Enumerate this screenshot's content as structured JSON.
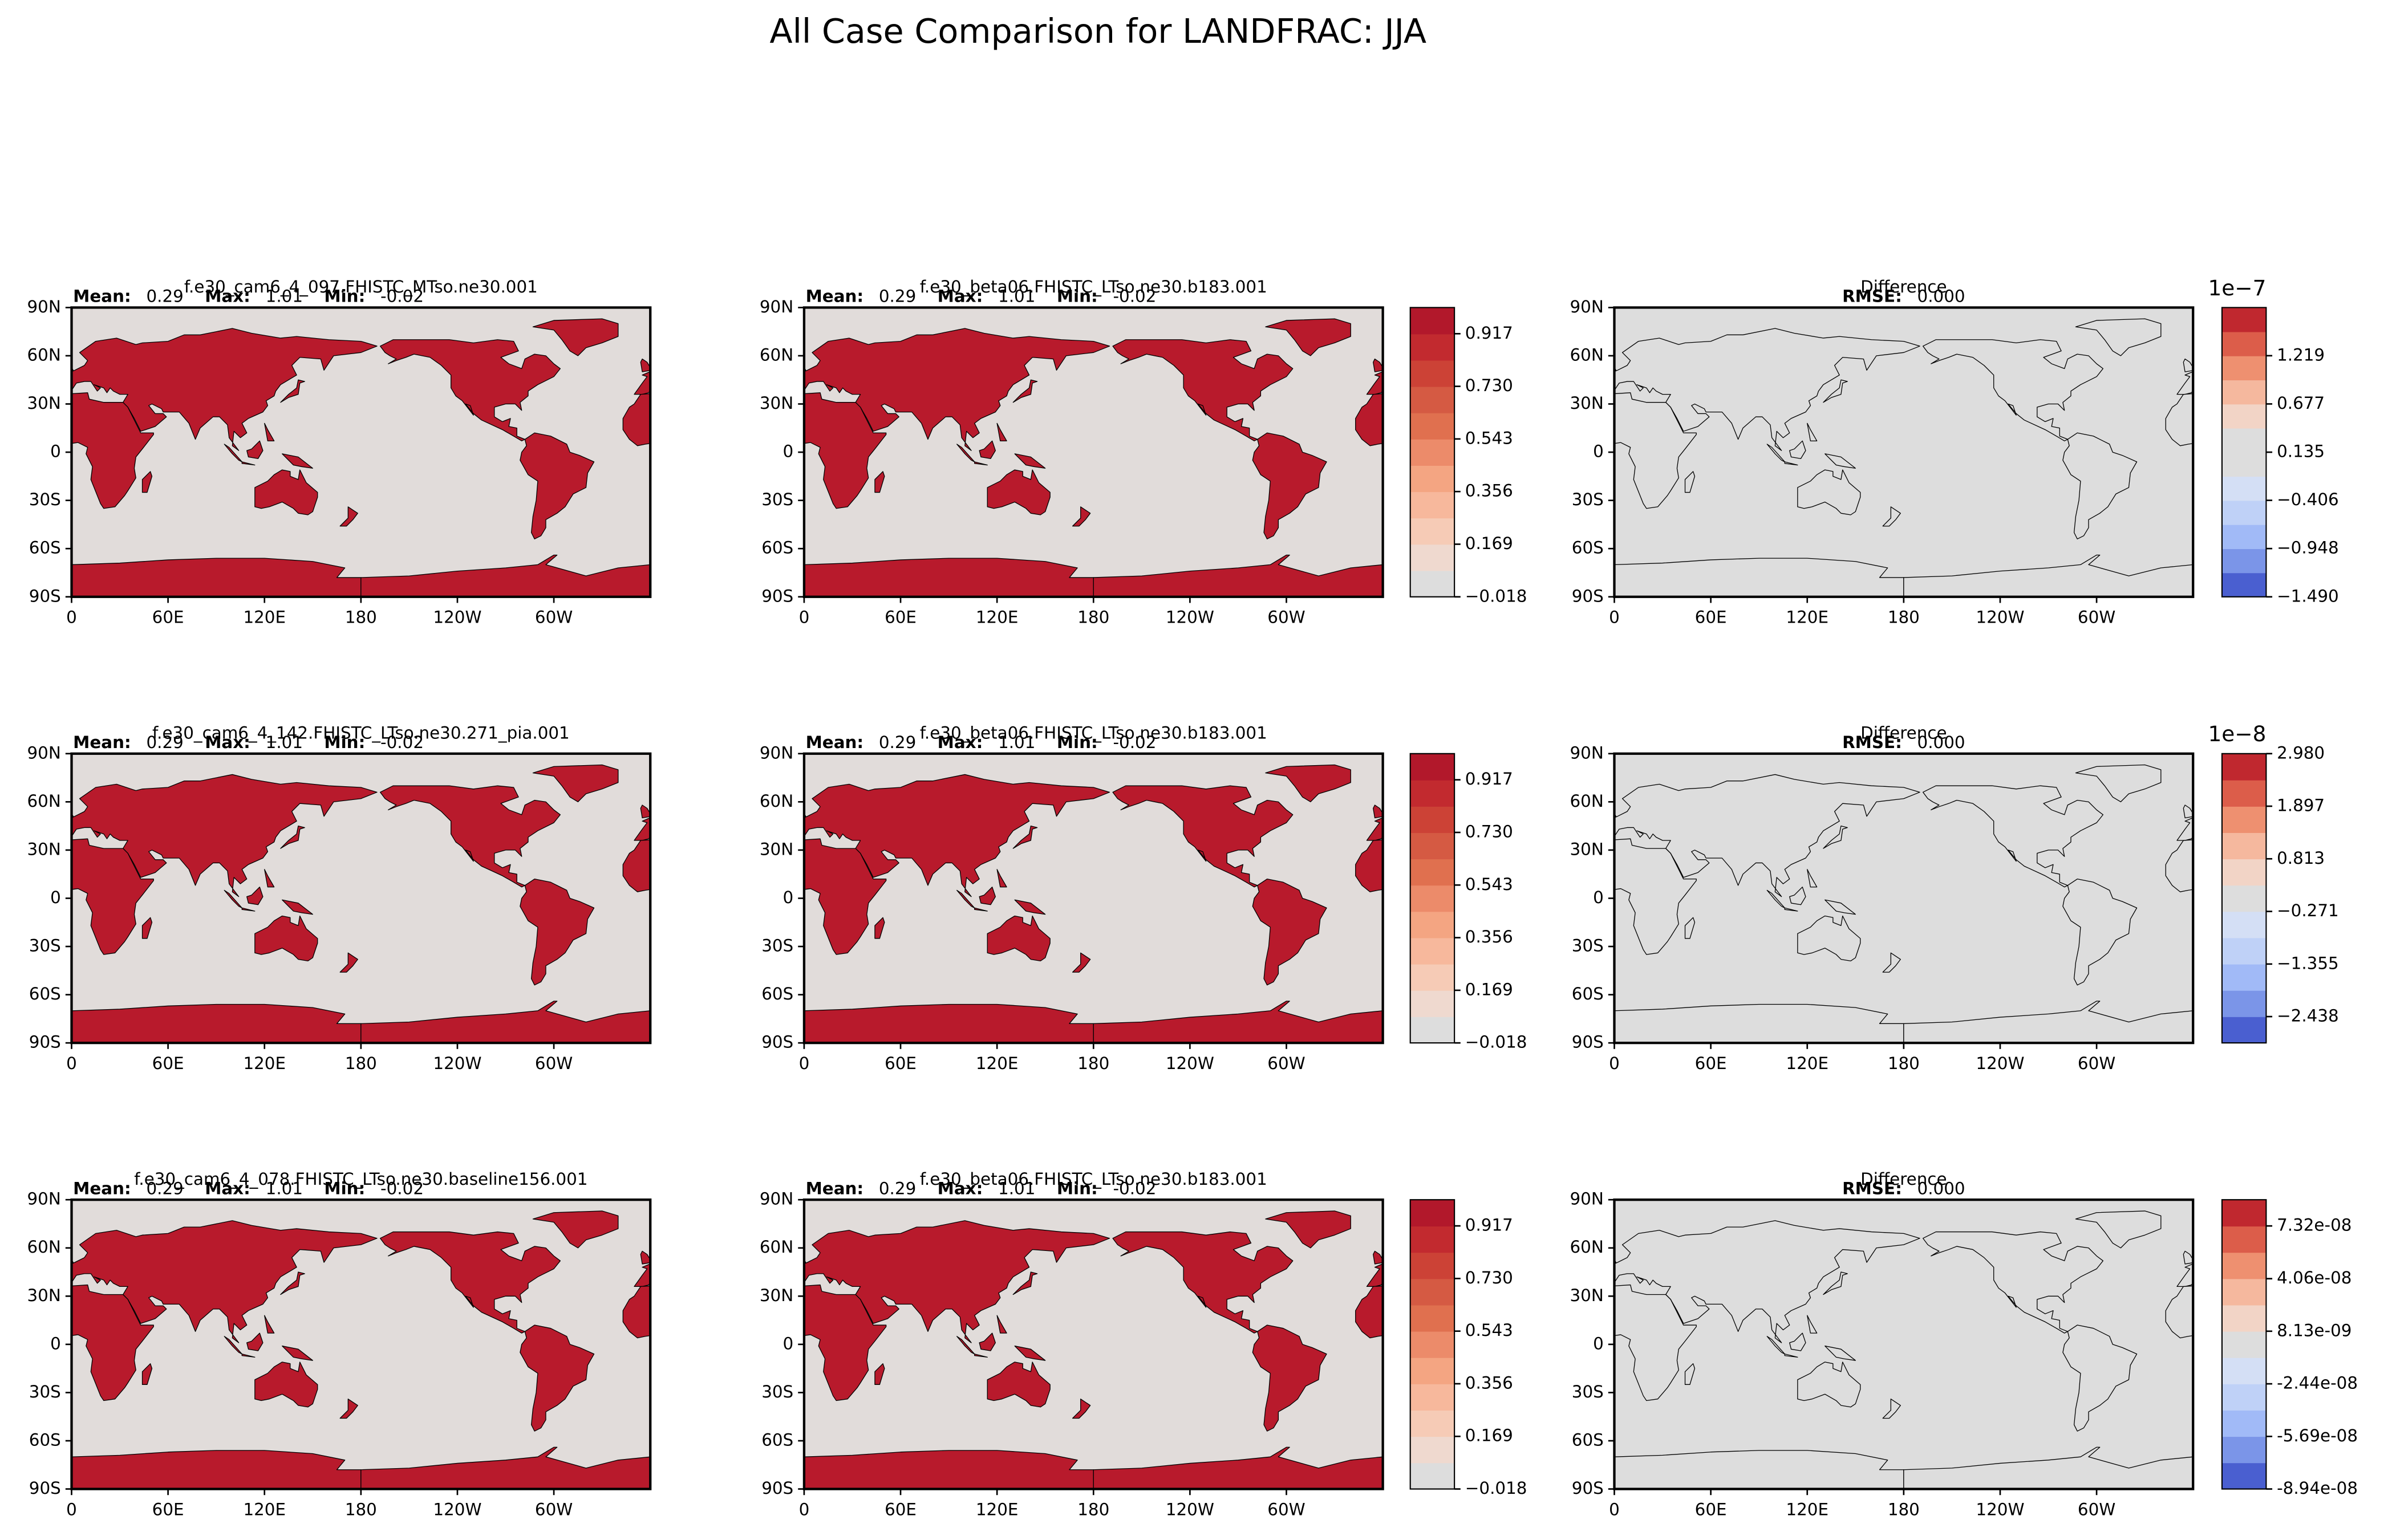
{
  "title": "All Case Comparison for LANDFRAC: JJA",
  "chart_data": [
    {
      "type": "map",
      "title": "f.e30_cam6_4_097.FHISTC_MTso.ne30.001",
      "stats": {
        "labels": [
          "Mean:",
          "Max:",
          "Min:"
        ],
        "values": [
          0.29,
          1.01,
          -0.02
        ]
      },
      "xlim": [
        0,
        360
      ],
      "ylim": [
        -90,
        90
      ],
      "xticks": [
        0,
        {
          "value": 60,
          "label": "60E"
        },
        {
          "value": 120,
          "label": "120E"
        },
        180,
        {
          "value": 240,
          "label": "120W"
        },
        {
          "value": 300,
          "label": "60W"
        }
      ],
      "yticks": [
        {
          "value": -90,
          "label": "90S"
        },
        {
          "value": -60,
          "label": "60S"
        },
        {
          "value": -30,
          "label": "30S"
        },
        0,
        {
          "value": 30,
          "label": "30N"
        },
        {
          "value": 60,
          "label": "60N"
        },
        {
          "value": 90,
          "label": "90N"
        }
      ],
      "land_color": "#b81a2c",
      "ocean_color": "#e1dcda"
    },
    {
      "type": "map",
      "title": "f.e30_beta06.FHISTC_LTso.ne30.b183.001",
      "stats": {
        "labels": [
          "Mean:",
          "Max:",
          "Min:"
        ],
        "values": [
          0.29,
          1.01,
          -0.02
        ]
      },
      "xlim": [
        0,
        360
      ],
      "ylim": [
        -90,
        90
      ],
      "xticks": [
        0,
        {
          "value": 60,
          "label": "60E"
        },
        {
          "value": 120,
          "label": "120E"
        },
        180,
        {
          "value": 240,
          "label": "120W"
        },
        {
          "value": 300,
          "label": "60W"
        }
      ],
      "yticks": [
        {
          "value": -90,
          "label": "90S"
        },
        {
          "value": -60,
          "label": "60S"
        },
        {
          "value": -30,
          "label": "30S"
        },
        0,
        {
          "value": 30,
          "label": "30N"
        },
        {
          "value": 60,
          "label": "60N"
        },
        {
          "value": 90,
          "label": "90N"
        }
      ],
      "land_color": "#b81a2c",
      "ocean_color": "#e1dcda",
      "colorbar": {
        "lim": [
          -0.018,
          1.01
        ],
        "colors": [
          "#dddddd",
          "#efd9cf",
          "#f6cbb6",
          "#f7b89c",
          "#f4a582",
          "#ec8b6a",
          "#e0704f",
          "#d55a43",
          "#cc4236",
          "#c22a2f",
          "#b2182b"
        ],
        "ticks": [
          {
            "value": -0.018,
            "label": "−0.018"
          },
          0.169,
          0.356,
          0.543,
          {
            "value": 0.73,
            "label": "0.730"
          },
          0.917
        ]
      }
    },
    {
      "type": "map",
      "title": "Difference",
      "stats": {
        "labels": [
          "RMSE:"
        ],
        "values": [
          0
        ],
        "value_labels": [
          "0.000"
        ]
      },
      "xlim": [
        0,
        360
      ],
      "ylim": [
        -90,
        90
      ],
      "xticks": [
        0,
        {
          "value": 60,
          "label": "60E"
        },
        {
          "value": 120,
          "label": "120E"
        },
        180,
        {
          "value": 240,
          "label": "120W"
        },
        {
          "value": 300,
          "label": "60W"
        }
      ],
      "yticks": [
        {
          "value": -90,
          "label": "90S"
        },
        {
          "value": -60,
          "label": "60S"
        },
        {
          "value": -30,
          "label": "30S"
        },
        0,
        {
          "value": 30,
          "label": "30N"
        },
        {
          "value": 60,
          "label": "60N"
        },
        {
          "value": 90,
          "label": "90N"
        }
      ],
      "land_color": "none",
      "ocean_color": "#dddddd",
      "colorbar": {
        "lim": [
          -1.49,
          1.76
        ],
        "offset": "1e−7",
        "colors": [
          "#4a5fd0",
          "#7b95e8",
          "#a1baf7",
          "#bfd1f7",
          "#d4dff5",
          "#dddddd",
          "#dddddd",
          "#f2d4c6",
          "#f5b89e",
          "#ee9070",
          "#dc5d4a",
          "#c0282f"
        ],
        "ticks": [
          {
            "value": -1.49,
            "label": "−1.490"
          },
          {
            "value": -0.948,
            "label": "−0.948"
          },
          {
            "value": -0.406,
            "label": "−0.406"
          },
          0.135,
          0.677,
          1.219
        ]
      }
    },
    {
      "type": "map",
      "title": "f.e30_cam6_4_142.FHISTC_LTso.ne30.271_pia.001",
      "stats": {
        "labels": [
          "Mean:",
          "Max:",
          "Min:"
        ],
        "values": [
          0.29,
          1.01,
          -0.02
        ]
      },
      "xlim": [
        0,
        360
      ],
      "ylim": [
        -90,
        90
      ],
      "xticks": [
        0,
        {
          "value": 60,
          "label": "60E"
        },
        {
          "value": 120,
          "label": "120E"
        },
        180,
        {
          "value": 240,
          "label": "120W"
        },
        {
          "value": 300,
          "label": "60W"
        }
      ],
      "yticks": [
        {
          "value": -90,
          "label": "90S"
        },
        {
          "value": -60,
          "label": "60S"
        },
        {
          "value": -30,
          "label": "30S"
        },
        0,
        {
          "value": 30,
          "label": "30N"
        },
        {
          "value": 60,
          "label": "60N"
        },
        {
          "value": 90,
          "label": "90N"
        }
      ],
      "land_color": "#b81a2c",
      "ocean_color": "#e1dcda"
    },
    {
      "type": "map",
      "title": "f.e30_beta06.FHISTC_LTso.ne30.b183.001",
      "stats": {
        "labels": [
          "Mean:",
          "Max:",
          "Min:"
        ],
        "values": [
          0.29,
          1.01,
          -0.02
        ]
      },
      "xlim": [
        0,
        360
      ],
      "ylim": [
        -90,
        90
      ],
      "xticks": [
        0,
        {
          "value": 60,
          "label": "60E"
        },
        {
          "value": 120,
          "label": "120E"
        },
        180,
        {
          "value": 240,
          "label": "120W"
        },
        {
          "value": 300,
          "label": "60W"
        }
      ],
      "yticks": [
        {
          "value": -90,
          "label": "90S"
        },
        {
          "value": -60,
          "label": "60S"
        },
        {
          "value": -30,
          "label": "30S"
        },
        0,
        {
          "value": 30,
          "label": "30N"
        },
        {
          "value": 60,
          "label": "60N"
        },
        {
          "value": 90,
          "label": "90N"
        }
      ],
      "land_color": "#b81a2c",
      "ocean_color": "#e1dcda",
      "colorbar": {
        "lim": [
          -0.018,
          1.01
        ],
        "colors": [
          "#dddddd",
          "#efd9cf",
          "#f6cbb6",
          "#f7b89c",
          "#f4a582",
          "#ec8b6a",
          "#e0704f",
          "#d55a43",
          "#cc4236",
          "#c22a2f",
          "#b2182b"
        ],
        "ticks": [
          {
            "value": -0.018,
            "label": "−0.018"
          },
          0.169,
          0.356,
          0.543,
          {
            "value": 0.73,
            "label": "0.730"
          },
          0.917
        ]
      }
    },
    {
      "type": "map",
      "title": "Difference",
      "stats": {
        "labels": [
          "RMSE:"
        ],
        "values": [
          0
        ],
        "value_labels": [
          "0.000"
        ]
      },
      "xlim": [
        0,
        360
      ],
      "ylim": [
        -90,
        90
      ],
      "xticks": [
        0,
        {
          "value": 60,
          "label": "60E"
        },
        {
          "value": 120,
          "label": "120E"
        },
        180,
        {
          "value": 240,
          "label": "120W"
        },
        {
          "value": 300,
          "label": "60W"
        }
      ],
      "yticks": [
        {
          "value": -90,
          "label": "90S"
        },
        {
          "value": -60,
          "label": "60S"
        },
        {
          "value": -30,
          "label": "30S"
        },
        0,
        {
          "value": 30,
          "label": "30N"
        },
        {
          "value": 60,
          "label": "60N"
        },
        {
          "value": 90,
          "label": "90N"
        }
      ],
      "land_color": "none",
      "ocean_color": "#dddddd",
      "colorbar": {
        "lim": [
          -2.98,
          2.98
        ],
        "offset": "1e−8",
        "colors": [
          "#4a5fd0",
          "#7b95e8",
          "#a1baf7",
          "#bfd1f7",
          "#d4dff5",
          "#dddddd",
          "#f2d4c6",
          "#f5b89e",
          "#ee9070",
          "#dc5d4a",
          "#c0282f"
        ],
        "ticks": [
          {
            "value": -2.438,
            "label": "−2.438"
          },
          {
            "value": -1.355,
            "label": "−1.355"
          },
          {
            "value": -0.271,
            "label": "−0.271"
          },
          0.813,
          1.897,
          {
            "value": 2.98,
            "label": "2.980"
          }
        ]
      }
    },
    {
      "type": "map",
      "title": "f.e30_cam6_4_078.FHISTC_LTso.ne30.baseline156.001",
      "stats": {
        "labels": [
          "Mean:",
          "Max:",
          "Min:"
        ],
        "values": [
          0.29,
          1.01,
          -0.02
        ]
      },
      "xlim": [
        0,
        360
      ],
      "ylim": [
        -90,
        90
      ],
      "xticks": [
        0,
        {
          "value": 60,
          "label": "60E"
        },
        {
          "value": 120,
          "label": "120E"
        },
        180,
        {
          "value": 240,
          "label": "120W"
        },
        {
          "value": 300,
          "label": "60W"
        }
      ],
      "yticks": [
        {
          "value": -90,
          "label": "90S"
        },
        {
          "value": -60,
          "label": "60S"
        },
        {
          "value": -30,
          "label": "30S"
        },
        0,
        {
          "value": 30,
          "label": "30N"
        },
        {
          "value": 60,
          "label": "60N"
        },
        {
          "value": 90,
          "label": "90N"
        }
      ],
      "land_color": "#b81a2c",
      "ocean_color": "#e1dcda"
    },
    {
      "type": "map",
      "title": "f.e30_beta06.FHISTC_LTso.ne30.b183.001",
      "stats": {
        "labels": [
          "Mean:",
          "Max:",
          "Min:"
        ],
        "values": [
          0.29,
          1.01,
          -0.02
        ]
      },
      "xlim": [
        0,
        360
      ],
      "ylim": [
        -90,
        90
      ],
      "xticks": [
        0,
        {
          "value": 60,
          "label": "60E"
        },
        {
          "value": 120,
          "label": "120E"
        },
        180,
        {
          "value": 240,
          "label": "120W"
        },
        {
          "value": 300,
          "label": "60W"
        }
      ],
      "yticks": [
        {
          "value": -90,
          "label": "90S"
        },
        {
          "value": -60,
          "label": "60S"
        },
        {
          "value": -30,
          "label": "30S"
        },
        0,
        {
          "value": 30,
          "label": "30N"
        },
        {
          "value": 60,
          "label": "60N"
        },
        {
          "value": 90,
          "label": "90N"
        }
      ],
      "land_color": "#b81a2c",
      "ocean_color": "#e1dcda",
      "colorbar": {
        "lim": [
          -0.018,
          1.01
        ],
        "colors": [
          "#dddddd",
          "#efd9cf",
          "#f6cbb6",
          "#f7b89c",
          "#f4a582",
          "#ec8b6a",
          "#e0704f",
          "#d55a43",
          "#cc4236",
          "#c22a2f",
          "#b2182b"
        ],
        "ticks": [
          {
            "value": -0.018,
            "label": "−0.018"
          },
          0.169,
          0.356,
          0.543,
          {
            "value": 0.73,
            "label": "0.730"
          },
          0.917
        ]
      }
    },
    {
      "type": "map",
      "title": "Difference",
      "stats": {
        "labels": [
          "RMSE:"
        ],
        "values": [
          0
        ],
        "value_labels": [
          "0.000"
        ]
      },
      "xlim": [
        0,
        360
      ],
      "ylim": [
        -90,
        90
      ],
      "xticks": [
        0,
        {
          "value": 60,
          "label": "60E"
        },
        {
          "value": 120,
          "label": "120E"
        },
        180,
        {
          "value": 240,
          "label": "120W"
        },
        {
          "value": 300,
          "label": "60W"
        }
      ],
      "yticks": [
        {
          "value": -90,
          "label": "90S"
        },
        {
          "value": -60,
          "label": "60S"
        },
        {
          "value": -30,
          "label": "30S"
        },
        0,
        {
          "value": 30,
          "label": "30N"
        },
        {
          "value": 60,
          "label": "60N"
        },
        {
          "value": 90,
          "label": "90N"
        }
      ],
      "land_color": "none",
      "ocean_color": "#dddddd",
      "colorbar": {
        "lim": [
          -8.94e-08,
          8.94e-08
        ],
        "colors": [
          "#4a5fd0",
          "#7b95e8",
          "#a1baf7",
          "#bfd1f7",
          "#d4dff5",
          "#dddddd",
          "#f2d4c6",
          "#f5b89e",
          "#ee9070",
          "#dc5d4a",
          "#c0282f"
        ],
        "ticks": [
          {
            "value": -8.94e-08,
            "label": "-8.94e-08"
          },
          {
            "value": -5.69e-08,
            "label": "-5.69e-08"
          },
          {
            "value": -2.44e-08,
            "label": "-2.44e-08"
          },
          {
            "value": 8.13e-09,
            "label": "8.13e-09"
          },
          {
            "value": 4.06e-08,
            "label": "4.06e-08"
          },
          {
            "value": 7.32e-08,
            "label": "7.32e-08"
          }
        ]
      }
    }
  ]
}
